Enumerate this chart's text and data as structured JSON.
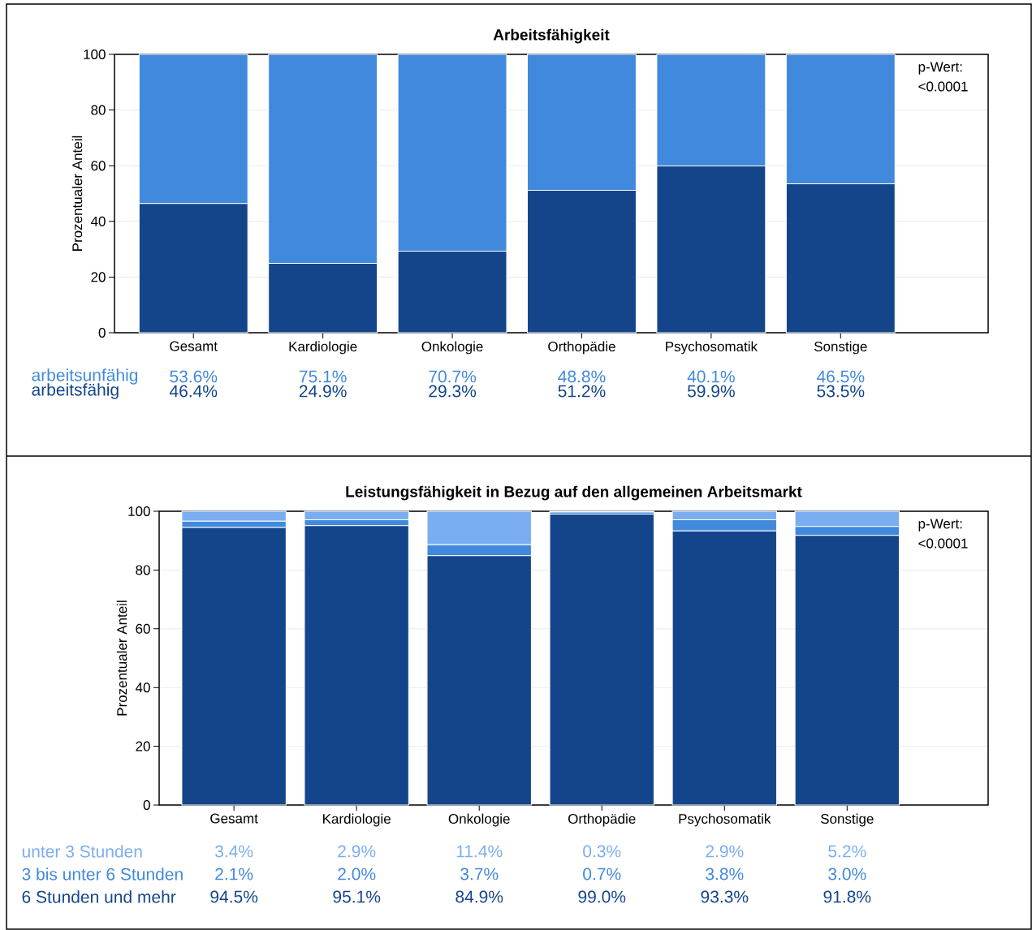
{
  "chart_data": [
    {
      "type": "bar",
      "title": "Arbeitsfähigkeit",
      "ylabel": "Prozentualer Anteil",
      "stacked": true,
      "grid": "y",
      "categories": [
        "Gesamt",
        "Kardiologie",
        "Onkologie",
        "Orthopädie",
        "Psychosomatik",
        "Sonstige"
      ],
      "ylim": [
        0,
        100
      ],
      "yticks": [
        0,
        20,
        40,
        60,
        80,
        100
      ],
      "annotations": [
        "p-Wert:",
        "<0.0001"
      ],
      "series": [
        {
          "name": "arbeitsfähig",
          "color": "#14458a",
          "values": [
            46.4,
            24.9,
            29.3,
            51.2,
            59.9,
            53.5
          ],
          "value_labels": [
            "46.4%",
            "24.9%",
            "29.3%",
            "51.2%",
            "59.9%",
            "53.5%"
          ]
        },
        {
          "name": "arbeitsunfähig",
          "color": "#4189dd",
          "values": [
            53.6,
            75.1,
            70.7,
            48.8,
            40.1,
            46.5
          ],
          "value_labels": [
            "53.6%",
            "75.1%",
            "70.7%",
            "48.8%",
            "40.1%",
            "46.5%"
          ]
        }
      ]
    },
    {
      "type": "bar",
      "title": "Leistungsfähigkeit in Bezug auf den allgemeinen Arbeitsmarkt",
      "ylabel": "Prozentualer Anteil",
      "stacked": true,
      "grid": "y",
      "categories": [
        "Gesamt",
        "Kardiologie",
        "Onkologie",
        "Orthopädie",
        "Psychosomatik",
        "Sonstige"
      ],
      "ylim": [
        0,
        100
      ],
      "yticks": [
        0,
        20,
        40,
        60,
        80,
        100
      ],
      "annotations": [
        "p-Wert:",
        "<0.0001"
      ],
      "series": [
        {
          "name": "6 Stunden und mehr",
          "color": "#14458a",
          "values": [
            94.5,
            95.1,
            84.9,
            99.0,
            93.3,
            91.8
          ],
          "value_labels": [
            "94.5%",
            "95.1%",
            "84.9%",
            "99.0%",
            "93.3%",
            "91.8%"
          ]
        },
        {
          "name": "3 bis unter 6 Stunden",
          "color": "#4189dd",
          "values": [
            2.1,
            2.0,
            3.7,
            0.7,
            3.8,
            3.0
          ],
          "value_labels": [
            "2.1%",
            "2.0%",
            "3.7%",
            "0.7%",
            "3.8%",
            "3.0%"
          ]
        },
        {
          "name": "unter 3 Stunden",
          "color": "#7aaef0",
          "values": [
            3.4,
            2.9,
            11.4,
            0.3,
            2.9,
            5.2
          ],
          "value_labels": [
            "3.4%",
            "2.9%",
            "11.4%",
            "0.3%",
            "2.9%",
            "5.2%"
          ]
        }
      ]
    }
  ]
}
